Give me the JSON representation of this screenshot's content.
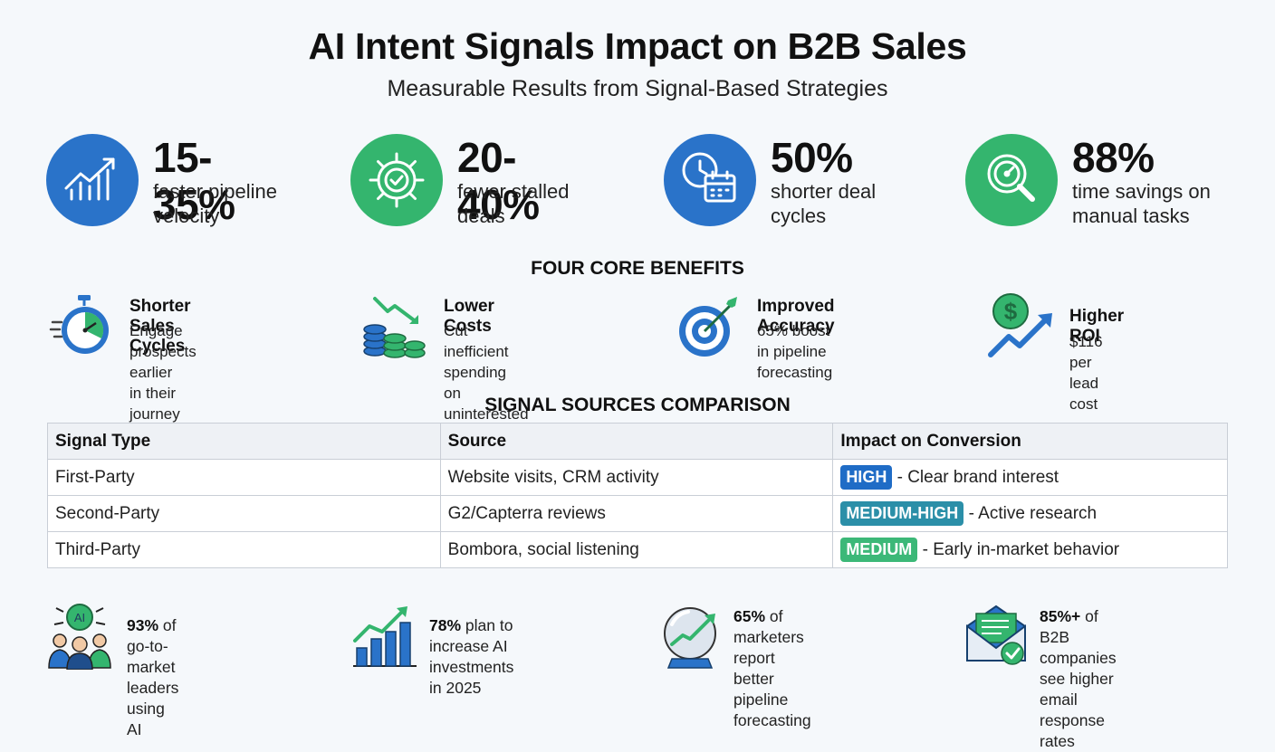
{
  "title": "AI Intent Signals Impact on B2B Sales",
  "subtitle": "Measurable Results from Signal-Based Strategies",
  "stats": [
    {
      "value": "15-35%",
      "line1": "faster pipeline",
      "line2": "velocity",
      "icon": "trending-chart-icon",
      "color": "#2a73c9"
    },
    {
      "value": "20-40%",
      "line1": "fewer stalled",
      "line2": "deals",
      "icon": "gear-check-icon",
      "color": "#34b56e"
    },
    {
      "value": "50%",
      "line1": "shorter deal",
      "line2": "cycles",
      "icon": "clock-calendar-icon",
      "color": "#2a73c9"
    },
    {
      "value": "88%",
      "line1": "time savings on",
      "line2": "manual tasks",
      "icon": "magnifier-gauge-icon",
      "color": "#34b56e"
    }
  ],
  "benefits_heading": "FOUR CORE BENEFITS",
  "benefits": [
    {
      "title": "Shorter Sales Cycles",
      "line1": "Engage prospects earlier",
      "line2": "in their journey",
      "icon": "stopwatch-icon"
    },
    {
      "title": "Lower Costs",
      "line1": "Cut inefficient spending",
      "line2": "on uninterested leads",
      "icon": "coins-down-icon"
    },
    {
      "title": "Improved Accuracy",
      "line1": "65% boost in pipeline",
      "line2": "forecasting",
      "icon": "target-icon"
    },
    {
      "title": "Higher ROI",
      "line1": "$116 per lead cost",
      "icon": "dollar-growth-icon"
    }
  ],
  "comparison_heading": "SIGNAL SOURCES COMPARISON",
  "table": {
    "headers": [
      "Signal Type",
      "Source",
      "Impact on Conversion"
    ],
    "rows": [
      {
        "type": "First-Party",
        "source": "Website visits, CRM activity",
        "badge": "HIGH",
        "badge_color": "#1f6cc6",
        "impact": " - Clear brand interest"
      },
      {
        "type": "Second-Party",
        "source": "G2/Capterra reviews",
        "badge": "MEDIUM-HIGH",
        "badge_color": "#2b8fa8",
        "impact": " - Active research"
      },
      {
        "type": "Third-Party",
        "source": "Bombora, social listening",
        "badge": "MEDIUM",
        "badge_color": "#3cb878",
        "impact": " - Early in-market behavior"
      }
    ]
  },
  "facts": [
    {
      "bold": "93%",
      "line1": " of go-to-market",
      "line2": "leaders using AI",
      "icon": "ai-team-icon"
    },
    {
      "bold": "78%",
      "line1": " plan to increase AI",
      "line2": "investments in 2025",
      "icon": "bar-growth-icon"
    },
    {
      "bold": "65%",
      "line1": " of marketers report",
      "line2": "better pipeline",
      "line3": "forecasting",
      "icon": "crystal-ball-icon"
    },
    {
      "bold": "85%+",
      "line1": " of B2B companies",
      "line2": "see higher email",
      "line3": "response rates",
      "icon": "email-check-icon"
    }
  ]
}
